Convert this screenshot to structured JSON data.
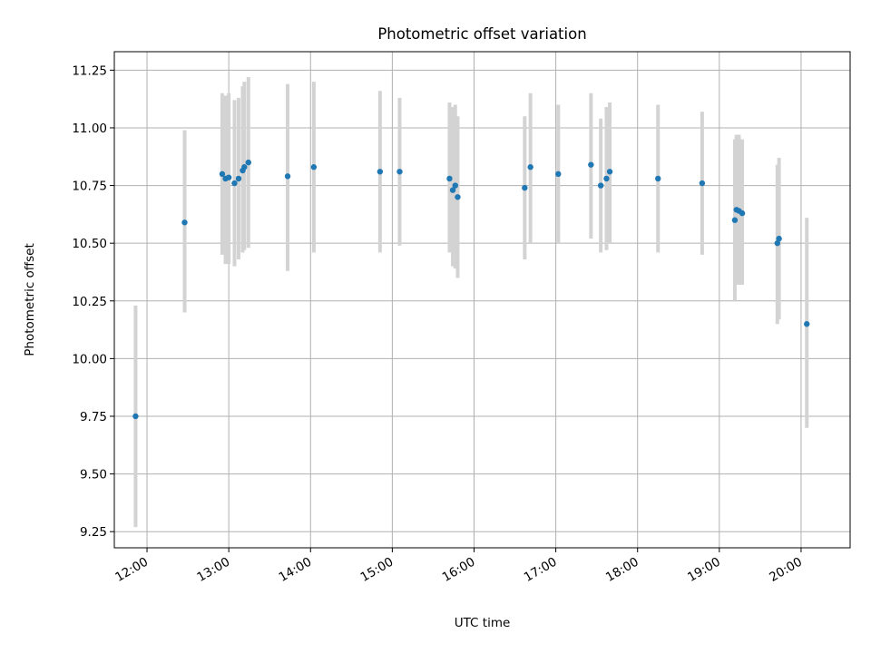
{
  "chart_data": {
    "type": "scatter",
    "title": "Photometric offset variation",
    "xlabel": "UTC time",
    "ylabel": "Photometric offset",
    "x_tick_labels": [
      "12:00",
      "13:00",
      "14:00",
      "15:00",
      "16:00",
      "17:00",
      "18:00",
      "19:00",
      "20:00"
    ],
    "x_tick_values": [
      12,
      13,
      14,
      15,
      16,
      17,
      18,
      19,
      20
    ],
    "xlim": [
      11.6,
      20.6
    ],
    "y_tick_labels": [
      "9.25",
      "9.50",
      "9.75",
      "10.00",
      "10.25",
      "10.50",
      "10.75",
      "11.00",
      "11.25"
    ],
    "y_tick_values": [
      9.25,
      9.5,
      9.75,
      10.0,
      10.25,
      10.5,
      10.75,
      11.0,
      11.25
    ],
    "ylim": [
      9.18,
      11.33
    ],
    "grid": true,
    "colors": {
      "point": "#1f77b4",
      "errorbar": "#d3d3d3",
      "grid": "#b0b0b0"
    },
    "points": [
      {
        "x": 11.86,
        "y": 9.75,
        "lo": 9.27,
        "hi": 10.23
      },
      {
        "x": 12.46,
        "y": 10.59,
        "lo": 10.2,
        "hi": 10.99
      },
      {
        "x": 12.92,
        "y": 10.8,
        "lo": 10.45,
        "hi": 11.15
      },
      {
        "x": 12.96,
        "y": 10.78,
        "lo": 10.41,
        "hi": 11.14
      },
      {
        "x": 13.0,
        "y": 10.785,
        "lo": 10.41,
        "hi": 11.15
      },
      {
        "x": 13.07,
        "y": 10.76,
        "lo": 10.4,
        "hi": 11.12
      },
      {
        "x": 13.12,
        "y": 10.78,
        "lo": 10.43,
        "hi": 11.13
      },
      {
        "x": 13.17,
        "y": 10.815,
        "lo": 10.46,
        "hi": 11.18
      },
      {
        "x": 13.19,
        "y": 10.83,
        "lo": 10.47,
        "hi": 11.2
      },
      {
        "x": 13.24,
        "y": 10.85,
        "lo": 10.48,
        "hi": 11.22
      },
      {
        "x": 13.72,
        "y": 10.79,
        "lo": 10.38,
        "hi": 11.19
      },
      {
        "x": 14.04,
        "y": 10.83,
        "lo": 10.46,
        "hi": 11.2
      },
      {
        "x": 14.85,
        "y": 10.81,
        "lo": 10.46,
        "hi": 11.16
      },
      {
        "x": 15.09,
        "y": 10.81,
        "lo": 10.49,
        "hi": 11.13
      },
      {
        "x": 15.7,
        "y": 10.78,
        "lo": 10.46,
        "hi": 11.11
      },
      {
        "x": 15.74,
        "y": 10.73,
        "lo": 10.4,
        "hi": 11.09
      },
      {
        "x": 15.77,
        "y": 10.75,
        "lo": 10.39,
        "hi": 11.1
      },
      {
        "x": 15.8,
        "y": 10.7,
        "lo": 10.35,
        "hi": 11.05
      },
      {
        "x": 16.62,
        "y": 10.74,
        "lo": 10.43,
        "hi": 11.05
      },
      {
        "x": 16.69,
        "y": 10.83,
        "lo": 10.5,
        "hi": 11.15
      },
      {
        "x": 17.03,
        "y": 10.8,
        "lo": 10.5,
        "hi": 11.1
      },
      {
        "x": 17.43,
        "y": 10.84,
        "lo": 10.52,
        "hi": 11.15
      },
      {
        "x": 17.55,
        "y": 10.75,
        "lo": 10.46,
        "hi": 11.04
      },
      {
        "x": 17.62,
        "y": 10.78,
        "lo": 10.47,
        "hi": 11.09
      },
      {
        "x": 17.66,
        "y": 10.81,
        "lo": 10.5,
        "hi": 11.11
      },
      {
        "x": 18.25,
        "y": 10.78,
        "lo": 10.46,
        "hi": 11.1
      },
      {
        "x": 18.79,
        "y": 10.76,
        "lo": 10.45,
        "hi": 11.07
      },
      {
        "x": 19.19,
        "y": 10.6,
        "lo": 10.25,
        "hi": 10.95
      },
      {
        "x": 19.21,
        "y": 10.645,
        "lo": 10.32,
        "hi": 10.97
      },
      {
        "x": 19.24,
        "y": 10.64,
        "lo": 10.32,
        "hi": 10.97
      },
      {
        "x": 19.28,
        "y": 10.63,
        "lo": 10.32,
        "hi": 10.95
      },
      {
        "x": 19.71,
        "y": 10.5,
        "lo": 10.15,
        "hi": 10.84
      },
      {
        "x": 19.73,
        "y": 10.52,
        "lo": 10.17,
        "hi": 10.87
      },
      {
        "x": 20.07,
        "y": 10.15,
        "lo": 9.7,
        "hi": 10.61
      }
    ]
  }
}
